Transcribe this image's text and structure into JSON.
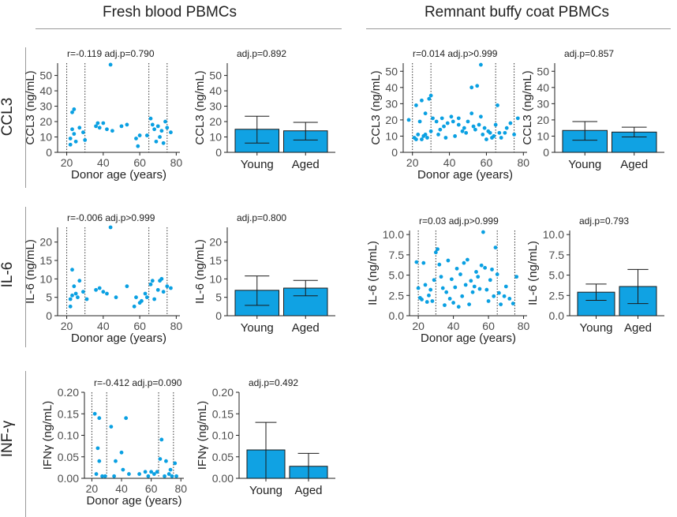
{
  "columns": {
    "left": "Fresh blood PBMCs",
    "right": "Remnant buffy coat PBMCs"
  },
  "rows": [
    "CCL3",
    "IL-6",
    "INF-γ"
  ],
  "colors": {
    "point": "#0aa0e2",
    "bar": "#10a2e3",
    "axis": "#222222"
  },
  "chart_data": [
    {
      "id": "fresh-ccl3-scatter",
      "type": "scatter",
      "annotation": "r=-0.119  adj.p=0.790",
      "xlabel": "Donor age (years)",
      "ylabel": "CCL3 (ng/mL)",
      "xlim": [
        15,
        82
      ],
      "ylim": [
        0,
        58
      ],
      "xticks": [
        20,
        40,
        60,
        80
      ],
      "yticks": [
        0,
        10,
        20,
        30,
        40,
        50
      ],
      "cutoffs": [
        20,
        30,
        65,
        75
      ],
      "points": [
        [
          22,
          9
        ],
        [
          22,
          5
        ],
        [
          23,
          26
        ],
        [
          23,
          15
        ],
        [
          24,
          28
        ],
        [
          24,
          12
        ],
        [
          25,
          7
        ],
        [
          27,
          16
        ],
        [
          29,
          13
        ],
        [
          30,
          8
        ],
        [
          36,
          17
        ],
        [
          37,
          19
        ],
        [
          38,
          16
        ],
        [
          40,
          19
        ],
        [
          42,
          15
        ],
        [
          44,
          57
        ],
        [
          45,
          14
        ],
        [
          50,
          17
        ],
        [
          53,
          18
        ],
        [
          58,
          9
        ],
        [
          59,
          4
        ],
        [
          60,
          11
        ],
        [
          64,
          11
        ],
        [
          66,
          22
        ],
        [
          67,
          18
        ],
        [
          68,
          15
        ],
        [
          69,
          7
        ],
        [
          70,
          17
        ],
        [
          71,
          10
        ],
        [
          72,
          14
        ],
        [
          73,
          6
        ],
        [
          74,
          20
        ],
        [
          75,
          16
        ],
        [
          77,
          13
        ]
      ]
    },
    {
      "id": "fresh-ccl3-bar",
      "type": "bar",
      "annotation": "adj.p=0.892",
      "ylabel": "CCL3 (ng/mL)",
      "ylim": [
        0,
        58
      ],
      "yticks": [
        0,
        10,
        20,
        30,
        40,
        50
      ],
      "categories": [
        "Young",
        "Aged"
      ],
      "values": [
        15,
        14
      ],
      "err_low": [
        6,
        8
      ],
      "err_high": [
        23.5,
        19.5
      ]
    },
    {
      "id": "buffy-ccl3-scatter",
      "type": "scatter",
      "annotation": "r=0.014  adj.p>0.999",
      "xlabel": "Donor age (years)",
      "ylabel": "CCL3 (ng/mL)",
      "xlim": [
        15,
        82
      ],
      "ylim": [
        0,
        55
      ],
      "xticks": [
        20,
        40,
        60,
        80
      ],
      "yticks": [
        0,
        10,
        20,
        30,
        40,
        50
      ],
      "cutoffs": [
        20,
        30,
        65,
        75
      ],
      "points": [
        [
          18,
          20
        ],
        [
          21,
          9
        ],
        [
          22,
          8
        ],
        [
          22,
          29
        ],
        [
          23,
          11
        ],
        [
          24,
          19
        ],
        [
          25,
          8
        ],
        [
          25,
          32
        ],
        [
          26,
          10
        ],
        [
          27,
          24
        ],
        [
          27,
          11
        ],
        [
          28,
          9
        ],
        [
          29,
          33
        ],
        [
          30,
          35
        ],
        [
          30,
          13
        ],
        [
          31,
          21
        ],
        [
          33,
          19
        ],
        [
          34,
          11
        ],
        [
          35,
          14
        ],
        [
          36,
          21
        ],
        [
          37,
          16
        ],
        [
          38,
          9
        ],
        [
          39,
          18
        ],
        [
          41,
          22
        ],
        [
          42,
          19
        ],
        [
          43,
          10
        ],
        [
          45,
          17
        ],
        [
          45,
          21
        ],
        [
          47,
          13
        ],
        [
          48,
          15
        ],
        [
          49,
          12
        ],
        [
          50,
          19
        ],
        [
          52,
          24
        ],
        [
          52,
          40
        ],
        [
          53,
          16
        ],
        [
          54,
          14
        ],
        [
          55,
          41
        ],
        [
          56,
          17
        ],
        [
          57,
          54
        ],
        [
          57,
          22
        ],
        [
          58,
          11
        ],
        [
          59,
          15
        ],
        [
          60,
          8
        ],
        [
          61,
          13
        ],
        [
          62,
          12
        ],
        [
          63,
          9
        ],
        [
          64,
          10
        ],
        [
          65,
          17
        ],
        [
          66,
          29
        ],
        [
          67,
          12
        ],
        [
          68,
          9
        ],
        [
          70,
          12
        ],
        [
          71,
          15
        ],
        [
          73,
          18
        ],
        [
          75,
          11
        ],
        [
          77,
          21
        ]
      ]
    },
    {
      "id": "buffy-ccl3-bar",
      "type": "bar",
      "annotation": "adj.p=0.857",
      "ylabel": "CCL3 (ng/mL)",
      "ylim": [
        0,
        55
      ],
      "yticks": [
        0,
        10,
        20,
        30,
        40,
        50
      ],
      "categories": [
        "Young",
        "Aged"
      ],
      "values": [
        13.5,
        12.5
      ],
      "err_low": [
        7.5,
        9.5
      ],
      "err_high": [
        19,
        15.5
      ]
    },
    {
      "id": "fresh-il6-scatter",
      "type": "scatter",
      "annotation": "r=-0.006  adj.p>0.999",
      "xlabel": "Donor age (years)",
      "ylabel": "IL-6 (ng/mL)",
      "xlim": [
        15,
        82
      ],
      "ylim": [
        0,
        24
      ],
      "xticks": [
        20,
        40,
        60,
        80
      ],
      "yticks": [
        0,
        5,
        10,
        15,
        20
      ],
      "cutoffs": [
        20,
        30,
        65,
        75
      ],
      "points": [
        [
          22,
          2.5
        ],
        [
          22,
          4.5
        ],
        [
          23,
          12.5
        ],
        [
          23,
          5.5
        ],
        [
          24,
          8
        ],
        [
          25,
          6
        ],
        [
          26,
          5
        ],
        [
          27,
          9.5
        ],
        [
          29,
          6.5
        ],
        [
          31,
          4.5
        ],
        [
          36,
          7
        ],
        [
          38,
          7.5
        ],
        [
          40,
          6.5
        ],
        [
          42,
          6
        ],
        [
          44,
          24
        ],
        [
          47,
          5
        ],
        [
          53,
          8
        ],
        [
          57,
          2.5
        ],
        [
          58,
          5
        ],
        [
          60,
          3.5
        ],
        [
          61,
          4
        ],
        [
          63,
          6
        ],
        [
          64,
          5
        ],
        [
          66,
          8.5
        ],
        [
          67,
          9.5
        ],
        [
          68,
          4.5
        ],
        [
          70,
          7
        ],
        [
          71,
          9.5
        ],
        [
          72,
          10
        ],
        [
          73,
          6.5
        ],
        [
          75,
          8
        ],
        [
          77,
          7.5
        ]
      ]
    },
    {
      "id": "fresh-il6-bar",
      "type": "bar",
      "annotation": "adj.p=0.800",
      "ylabel": "IL-6 (ng/mL)",
      "ylim": [
        0,
        24
      ],
      "yticks": [
        0,
        5,
        10,
        15,
        20
      ],
      "categories": [
        "Young",
        "Aged"
      ],
      "values": [
        6.9,
        7.5
      ],
      "err_low": [
        2.8,
        5.4
      ],
      "err_high": [
        10.8,
        9.6
      ]
    },
    {
      "id": "buffy-il6-scatter",
      "type": "scatter",
      "annotation": "r=0.03  adj.p>0.999",
      "xlabel": "Donor age (years)",
      "ylabel": "IL-6 (ng/mL)",
      "xlim": [
        15,
        82
      ],
      "ylim": [
        0,
        10.5
      ],
      "xticks": [
        20,
        40,
        60,
        80
      ],
      "yticks": [
        0,
        2.5,
        5.0,
        7.5,
        10.0
      ],
      "cutoffs": [
        20,
        30,
        65,
        75
      ],
      "points": [
        [
          19,
          6.6
        ],
        [
          20,
          3.4
        ],
        [
          21,
          2.2
        ],
        [
          22,
          2.0
        ],
        [
          23,
          6.5
        ],
        [
          24,
          3.8
        ],
        [
          25,
          1.7
        ],
        [
          26,
          2.5
        ],
        [
          27,
          3.2
        ],
        [
          28,
          1.8
        ],
        [
          29,
          4.4
        ],
        [
          30,
          7.8
        ],
        [
          31,
          8.2
        ],
        [
          32,
          6.3
        ],
        [
          33,
          4.8
        ],
        [
          34,
          3.4
        ],
        [
          35,
          1.3
        ],
        [
          36,
          2.9
        ],
        [
          37,
          6.8
        ],
        [
          38,
          2.1
        ],
        [
          39,
          4.5
        ],
        [
          40,
          1.6
        ],
        [
          41,
          3.5
        ],
        [
          42,
          5.8
        ],
        [
          43,
          1.1
        ],
        [
          44,
          5.1
        ],
        [
          45,
          2.4
        ],
        [
          46,
          6.5
        ],
        [
          47,
          3.8
        ],
        [
          48,
          6.9
        ],
        [
          49,
          1.4
        ],
        [
          50,
          4.3
        ],
        [
          51,
          2.9
        ],
        [
          52,
          3.6
        ],
        [
          53,
          5.4
        ],
        [
          54,
          4.8
        ],
        [
          55,
          3.3
        ],
        [
          56,
          6.2
        ],
        [
          57,
          10.3
        ],
        [
          58,
          5.9
        ],
        [
          59,
          3.2
        ],
        [
          60,
          1.8
        ],
        [
          61,
          4.4
        ],
        [
          62,
          5.7
        ],
        [
          63,
          2.4
        ],
        [
          64,
          8.4
        ],
        [
          65,
          5.1
        ],
        [
          66,
          2.8
        ],
        [
          67,
          1.4
        ],
        [
          69,
          2.4
        ],
        [
          70,
          3.6
        ],
        [
          72,
          2.1
        ],
        [
          74,
          1.5
        ],
        [
          76,
          4.8
        ]
      ]
    },
    {
      "id": "buffy-il6-bar",
      "type": "bar",
      "annotation": "adj.p=0.793",
      "ylabel": "IL-6 (ng/mL)",
      "ylim": [
        0,
        10.5
      ],
      "yticks": [
        0,
        2.5,
        5.0,
        7.5,
        10.0
      ],
      "categories": [
        "Young",
        "Aged"
      ],
      "values": [
        2.9,
        3.6
      ],
      "err_low": [
        1.9,
        1.5
      ],
      "err_high": [
        3.9,
        5.7
      ]
    },
    {
      "id": "fresh-ifng-scatter",
      "type": "scatter",
      "annotation": "r=-0.412  adj.p=0.090",
      "xlabel": "Donor age (years)",
      "ylabel": "IFNγ (ng/mL)",
      "xlim": [
        15,
        82
      ],
      "ylim": [
        0,
        0.2
      ],
      "xticks": [
        20,
        40,
        60,
        80
      ],
      "yticks": [
        0,
        0.05,
        0.1,
        0.15,
        0.2
      ],
      "cutoffs": [
        20,
        30,
        65,
        75
      ],
      "points": [
        [
          22,
          0.15
        ],
        [
          23,
          0.01
        ],
        [
          24,
          0.07
        ],
        [
          25,
          0.14
        ],
        [
          25,
          0.04
        ],
        [
          27,
          0.005
        ],
        [
          29,
          0.005
        ],
        [
          33,
          0.12
        ],
        [
          35,
          0.005
        ],
        [
          36,
          0.04
        ],
        [
          40,
          0.06
        ],
        [
          41,
          0.02
        ],
        [
          43,
          0.14
        ],
        [
          45,
          0.01
        ],
        [
          52,
          0.01
        ],
        [
          56,
          0.015
        ],
        [
          58,
          0.005
        ],
        [
          60,
          0.015
        ],
        [
          62,
          0.01
        ],
        [
          64,
          0.015
        ],
        [
          66,
          0.045
        ],
        [
          67,
          0.09
        ],
        [
          69,
          0.005
        ],
        [
          70,
          0.04
        ],
        [
          72,
          0.01
        ],
        [
          73,
          0.02
        ],
        [
          74,
          0.005
        ],
        [
          76,
          0.035
        ],
        [
          77,
          0.005
        ]
      ]
    },
    {
      "id": "fresh-ifng-bar",
      "type": "bar",
      "annotation": "adj.p=0.492",
      "ylabel": "IFNγ (ng/mL)",
      "ylim": [
        0,
        0.2
      ],
      "yticks": [
        0,
        0.05,
        0.1,
        0.15,
        0.2
      ],
      "categories": [
        "Young",
        "Aged"
      ],
      "values": [
        0.066,
        0.028
      ],
      "err_low": [
        0.0,
        0.0
      ],
      "err_high": [
        0.13,
        0.058
      ]
    }
  ]
}
